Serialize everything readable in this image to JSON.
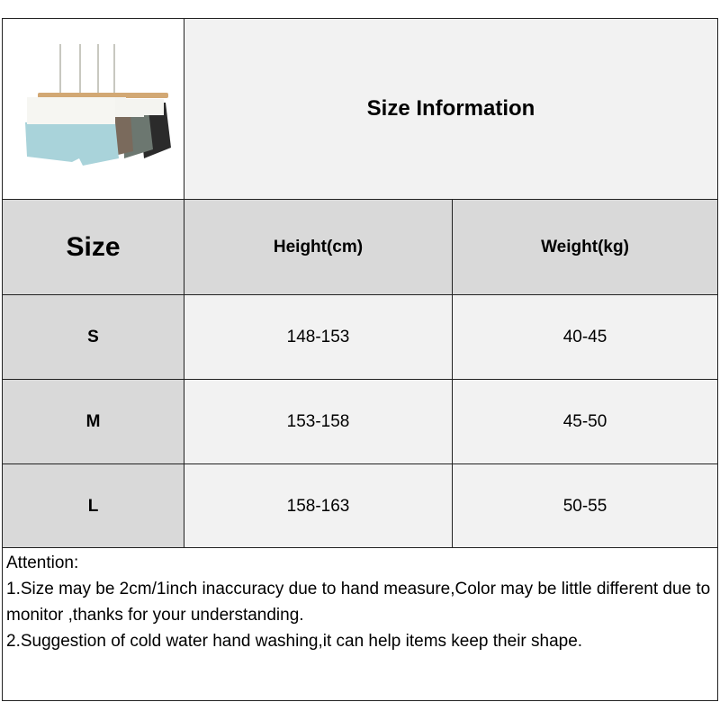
{
  "title": "Size Information",
  "headers": [
    "Size",
    "Height(cm)",
    "Weight(kg)"
  ],
  "rows": [
    [
      "S",
      "148-153",
      "40-45"
    ],
    [
      "M",
      "153-158",
      "45-50"
    ],
    [
      "L",
      "158-163",
      "50-55"
    ]
  ],
  "attention": {
    "heading": "Attention:",
    "lines": [
      "1.Size may be 2cm/1inch inaccuracy due to hand measure,Color may be little different due to monitor ,thanks for your understanding.",
      "2.Suggestion of cold water hand washing,it can help items keep their shape."
    ]
  },
  "product_colors": [
    "#a9d3da",
    "#7a6a5c",
    "#6c7770",
    "#2b2b2b"
  ]
}
